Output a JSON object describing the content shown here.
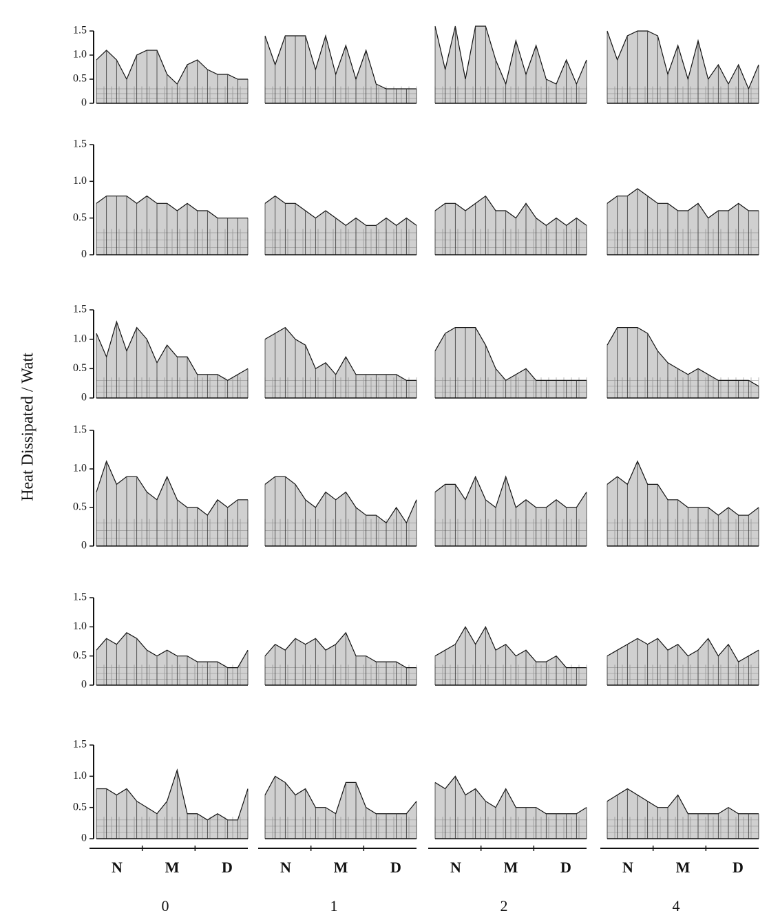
{
  "y_label": "Heat Dissipated / Watt",
  "x_labels": [
    "N",
    "M",
    "D"
  ],
  "column_labels": [
    "0",
    "1",
    "2",
    "4"
  ],
  "chart_data": [
    {
      "type": "area",
      "ylim": [
        0,
        1.5
      ],
      "yticks": [
        0,
        0.5,
        {
          "value": 1,
          "label": "1.0"
        },
        1.5
      ],
      "values": [
        0.9,
        1.1,
        0.9,
        0.5,
        1.0,
        1.1,
        1.1,
        0.6,
        0.4,
        0.8,
        0.9,
        0.7,
        0.6,
        0.6,
        0.5,
        0.5
      ]
    },
    {
      "type": "area",
      "ylim": [
        0,
        1.5
      ],
      "values": [
        1.4,
        0.8,
        1.4,
        1.4,
        1.4,
        0.7,
        1.4,
        0.6,
        1.2,
        0.5,
        1.1,
        0.4,
        0.3,
        0.3,
        0.3,
        0.3
      ]
    },
    {
      "type": "area",
      "ylim": [
        0,
        1.5
      ],
      "values": [
        1.6,
        0.7,
        1.6,
        0.5,
        1.6,
        1.6,
        0.9,
        0.4,
        1.3,
        0.6,
        1.2,
        0.5,
        0.4,
        0.9,
        0.4,
        0.9
      ]
    },
    {
      "type": "area",
      "ylim": [
        0,
        1.5
      ],
      "values": [
        1.5,
        0.9,
        1.4,
        1.5,
        1.5,
        1.4,
        0.6,
        1.2,
        0.5,
        1.3,
        0.5,
        0.8,
        0.4,
        0.8,
        0.3,
        0.8
      ]
    },
    {
      "type": "area",
      "ylim": [
        0,
        1.5
      ],
      "yticks": [
        0,
        0.5,
        {
          "value": 1,
          "label": "1.0"
        },
        1.5
      ],
      "values": [
        0.7,
        0.8,
        0.8,
        0.8,
        0.7,
        0.8,
        0.7,
        0.7,
        0.6,
        0.7,
        0.6,
        0.6,
        0.5,
        0.5,
        0.5,
        0.5
      ]
    },
    {
      "type": "area",
      "ylim": [
        0,
        1.5
      ],
      "values": [
        0.7,
        0.8,
        0.7,
        0.7,
        0.6,
        0.5,
        0.6,
        0.5,
        0.4,
        0.5,
        0.4,
        0.4,
        0.5,
        0.4,
        0.5,
        0.4
      ]
    },
    {
      "type": "area",
      "ylim": [
        0,
        1.5
      ],
      "values": [
        0.6,
        0.7,
        0.7,
        0.6,
        0.7,
        0.8,
        0.6,
        0.6,
        0.5,
        0.7,
        0.5,
        0.4,
        0.5,
        0.4,
        0.5,
        0.4
      ]
    },
    {
      "type": "area",
      "ylim": [
        0,
        1.5
      ],
      "values": [
        0.7,
        0.8,
        0.8,
        0.9,
        0.8,
        0.7,
        0.7,
        0.6,
        0.6,
        0.7,
        0.5,
        0.6,
        0.6,
        0.7,
        0.6,
        0.6
      ]
    },
    {
      "type": "area",
      "ylim": [
        0,
        1.5
      ],
      "yticks": [
        0,
        0.5,
        {
          "value": 1,
          "label": "1.0"
        },
        1.5
      ],
      "values": [
        1.1,
        0.7,
        1.3,
        0.8,
        1.2,
        1.0,
        0.6,
        0.9,
        0.7,
        0.7,
        0.4,
        0.4,
        0.4,
        0.3,
        0.4,
        0.5
      ]
    },
    {
      "type": "area",
      "ylim": [
        0,
        1.5
      ],
      "values": [
        1.0,
        1.1,
        1.2,
        1.0,
        0.9,
        0.5,
        0.6,
        0.4,
        0.7,
        0.4,
        0.4,
        0.4,
        0.4,
        0.4,
        0.3,
        0.3
      ]
    },
    {
      "type": "area",
      "ylim": [
        0,
        1.5
      ],
      "values": [
        0.8,
        1.1,
        1.2,
        1.2,
        1.2,
        0.9,
        0.5,
        0.3,
        0.4,
        0.5,
        0.3,
        0.3,
        0.3,
        0.3,
        0.3,
        0.3
      ]
    },
    {
      "type": "area",
      "ylim": [
        0,
        1.5
      ],
      "values": [
        0.9,
        1.2,
        1.2,
        1.2,
        1.1,
        0.8,
        0.6,
        0.5,
        0.4,
        0.5,
        0.4,
        0.3,
        0.3,
        0.3,
        0.3,
        0.2
      ]
    },
    {
      "type": "area",
      "ylim": [
        0,
        1.5
      ],
      "yticks": [
        0,
        0.5,
        {
          "value": 1,
          "label": "1.0"
        },
        1.5
      ],
      "values": [
        0.7,
        1.1,
        0.8,
        0.9,
        0.9,
        0.7,
        0.6,
        0.9,
        0.6,
        0.5,
        0.5,
        0.4,
        0.6,
        0.5,
        0.6,
        0.6
      ]
    },
    {
      "type": "area",
      "ylim": [
        0,
        1.5
      ],
      "values": [
        0.8,
        0.9,
        0.9,
        0.8,
        0.6,
        0.5,
        0.7,
        0.6,
        0.7,
        0.5,
        0.4,
        0.4,
        0.3,
        0.5,
        0.3,
        0.6
      ]
    },
    {
      "type": "area",
      "ylim": [
        0,
        1.5
      ],
      "values": [
        0.7,
        0.8,
        0.8,
        0.6,
        0.9,
        0.6,
        0.5,
        0.9,
        0.5,
        0.6,
        0.5,
        0.5,
        0.6,
        0.5,
        0.5,
        0.7
      ]
    },
    {
      "type": "area",
      "ylim": [
        0,
        1.5
      ],
      "values": [
        0.8,
        0.9,
        0.8,
        1.1,
        0.8,
        0.8,
        0.6,
        0.6,
        0.5,
        0.5,
        0.5,
        0.4,
        0.5,
        0.4,
        0.4,
        0.5
      ]
    },
    {
      "type": "area",
      "ylim": [
        0,
        1.5
      ],
      "yticks": [
        0,
        0.5,
        {
          "value": 1,
          "label": "1.0"
        },
        1.5
      ],
      "values": [
        0.6,
        0.8,
        0.7,
        0.9,
        0.8,
        0.6,
        0.5,
        0.6,
        0.5,
        0.5,
        0.4,
        0.4,
        0.4,
        0.3,
        0.3,
        0.6
      ]
    },
    {
      "type": "area",
      "ylim": [
        0,
        1.5
      ],
      "values": [
        0.5,
        0.7,
        0.6,
        0.8,
        0.7,
        0.8,
        0.6,
        0.7,
        0.9,
        0.5,
        0.5,
        0.4,
        0.4,
        0.4,
        0.3,
        0.3
      ]
    },
    {
      "type": "area",
      "ylim": [
        0,
        1.5
      ],
      "values": [
        0.5,
        0.6,
        0.7,
        1.0,
        0.7,
        1.0,
        0.6,
        0.7,
        0.5,
        0.6,
        0.4,
        0.4,
        0.5,
        0.3,
        0.3,
        0.3
      ]
    },
    {
      "type": "area",
      "ylim": [
        0,
        1.5
      ],
      "values": [
        0.5,
        0.6,
        0.7,
        0.8,
        0.7,
        0.8,
        0.6,
        0.7,
        0.5,
        0.6,
        0.8,
        0.5,
        0.7,
        0.4,
        0.5,
        0.6
      ]
    },
    {
      "type": "area",
      "ylim": [
        0,
        1.5
      ],
      "yticks": [
        0,
        0.5,
        {
          "value": 1,
          "label": "1.0"
        },
        1.5
      ],
      "values": [
        0.8,
        0.8,
        0.7,
        0.8,
        0.6,
        0.5,
        0.4,
        0.6,
        1.1,
        0.4,
        0.4,
        0.3,
        0.4,
        0.3,
        0.3,
        0.8
      ]
    },
    {
      "type": "area",
      "ylim": [
        0,
        1.5
      ],
      "values": [
        0.7,
        1.0,
        0.9,
        0.7,
        0.8,
        0.5,
        0.5,
        0.4,
        0.9,
        0.9,
        0.5,
        0.4,
        0.4,
        0.4,
        0.4,
        0.6
      ]
    },
    {
      "type": "area",
      "ylim": [
        0,
        1.5
      ],
      "values": [
        0.9,
        0.8,
        1.0,
        0.7,
        0.8,
        0.6,
        0.5,
        0.8,
        0.5,
        0.5,
        0.5,
        0.4,
        0.4,
        0.4,
        0.4,
        0.5
      ]
    },
    {
      "type": "area",
      "ylim": [
        0,
        1.5
      ],
      "values": [
        0.6,
        0.7,
        0.8,
        0.7,
        0.6,
        0.5,
        0.5,
        0.7,
        0.4,
        0.4,
        0.4,
        0.4,
        0.5,
        0.4,
        0.4,
        0.4
      ]
    }
  ]
}
